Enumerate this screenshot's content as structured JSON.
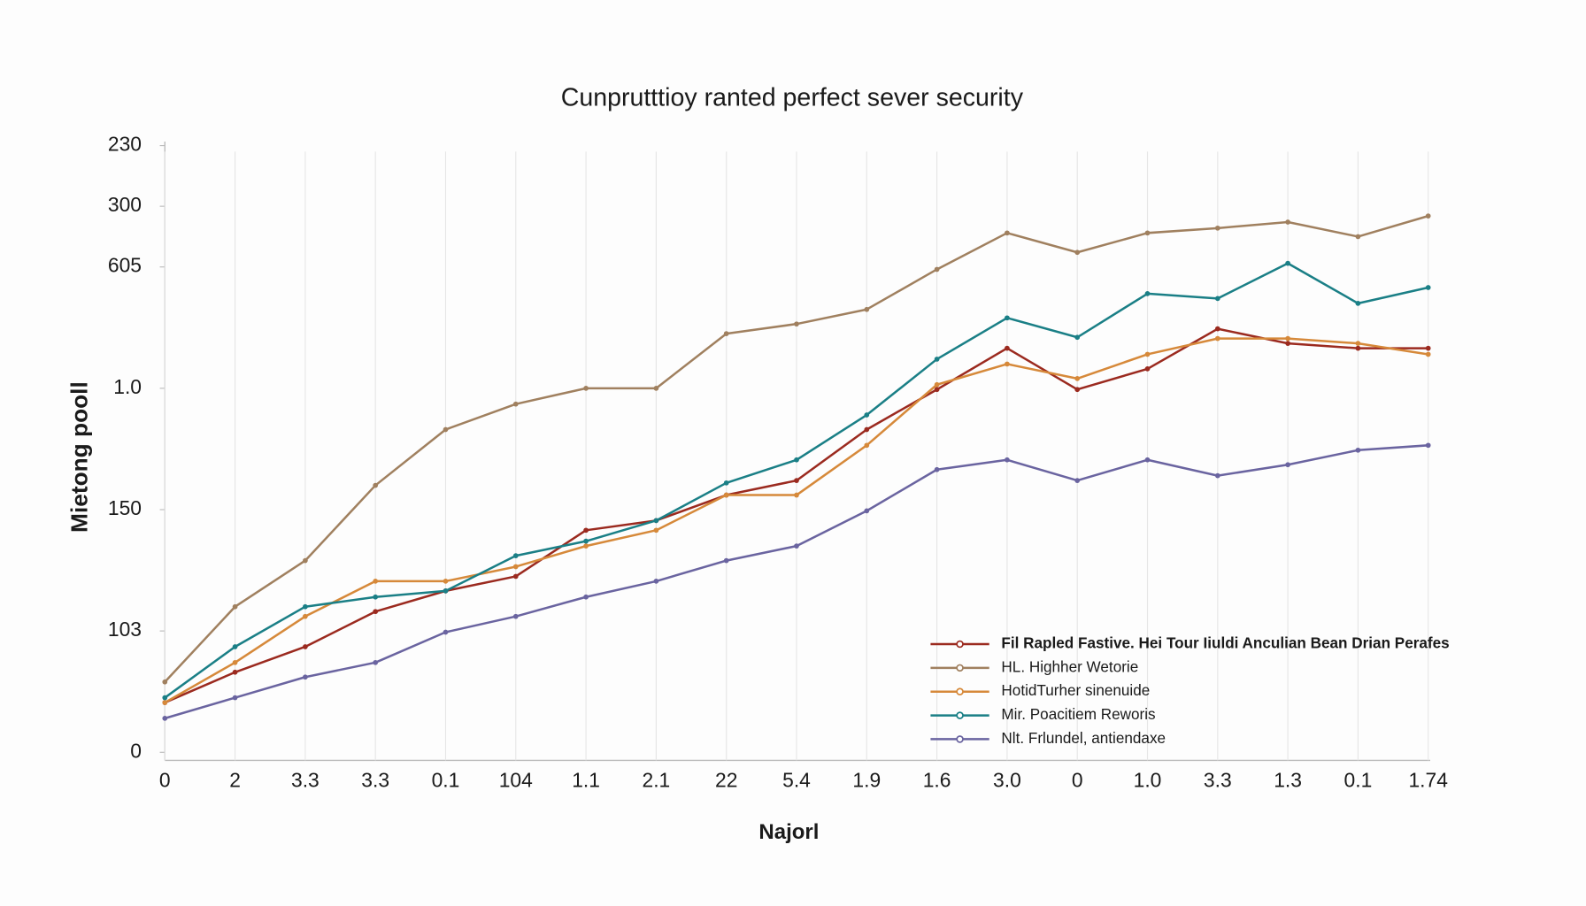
{
  "chart_data": {
    "type": "line",
    "title": "Cunprutttioy ranted perfect sever security",
    "x_label": "Najorl",
    "y_label": "Mietong pooll",
    "categories": [
      "0",
      "2",
      "3.3",
      "3.3",
      "0.1",
      "104",
      "1.1",
      "2.1",
      "22",
      "5.4",
      "1.9",
      "1.6",
      "3.0",
      "0",
      "1.0",
      "3.3",
      "1.3",
      "0.1",
      "1.74"
    ],
    "ylim": [
      0,
      5
    ],
    "yticks": [
      0,
      {
        "value": 1,
        "label": "103"
      },
      {
        "value": 2,
        "label": "150"
      },
      {
        "value": 3,
        "label": "1.0"
      },
      {
        "value": 4,
        "label": "605"
      },
      {
        "value": 4.5,
        "label": "300"
      },
      {
        "value": 5,
        "label": "230"
      }
    ],
    "series": [
      {
        "name": "Fil Rapled Fastive. Hei Tour Iiuldi Anculian Bean Drian Perafes",
        "color": "#9b2a1f",
        "values": [
          0.41,
          0.66,
          0.87,
          1.16,
          1.33,
          1.45,
          1.83,
          1.91,
          2.12,
          2.24,
          2.66,
          2.99,
          3.33,
          2.99,
          3.16,
          3.49,
          3.37,
          3.33,
          3.33
        ]
      },
      {
        "name": "HL. Highher Wetorie",
        "color": "#a0805f",
        "values": [
          0.58,
          1.2,
          1.58,
          2.2,
          2.66,
          2.87,
          3.0,
          3.0,
          3.45,
          3.53,
          3.65,
          3.98,
          4.28,
          4.12,
          4.28,
          4.32,
          4.37,
          4.25,
          4.42
        ]
      },
      {
        "name": "HotidTurher sinenuide",
        "color": "#d6893a",
        "values": [
          0.41,
          0.74,
          1.12,
          1.41,
          1.41,
          1.53,
          1.7,
          1.83,
          2.12,
          2.12,
          2.53,
          3.03,
          3.2,
          3.08,
          3.28,
          3.41,
          3.41,
          3.37,
          3.28
        ]
      },
      {
        "name": "Mir. Poacitiem Reworis",
        "color": "#1a7f86",
        "values": [
          0.45,
          0.87,
          1.2,
          1.28,
          1.33,
          1.62,
          1.74,
          1.91,
          2.22,
          2.41,
          2.78,
          3.24,
          3.58,
          3.42,
          3.78,
          3.74,
          4.03,
          3.7,
          3.83
        ]
      },
      {
        "name": "Nlt. Frlundel, antiendaxe",
        "color": "#6a64a0",
        "values": [
          0.28,
          0.45,
          0.62,
          0.74,
          0.99,
          1.12,
          1.28,
          1.41,
          1.58,
          1.7,
          1.99,
          2.33,
          2.41,
          2.24,
          2.41,
          2.28,
          2.37,
          2.49,
          2.53
        ]
      }
    ]
  }
}
